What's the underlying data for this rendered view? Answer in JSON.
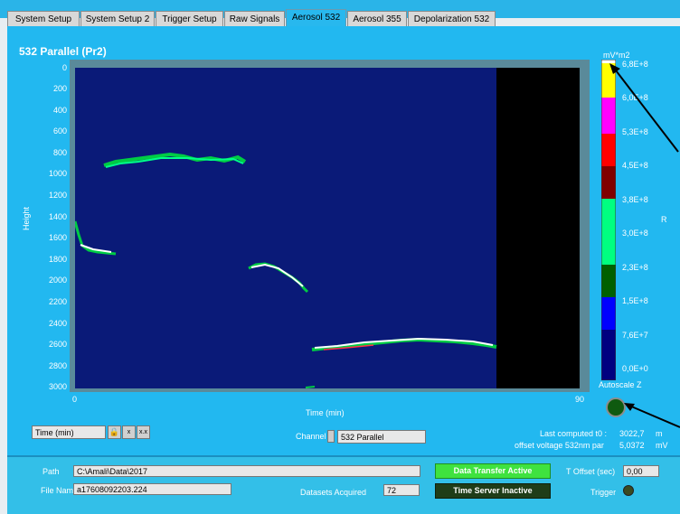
{
  "tabs": [
    {
      "label": "System Setup"
    },
    {
      "label": "System Setup 2"
    },
    {
      "label": "Trigger Setup"
    },
    {
      "label": "Raw Signals"
    },
    {
      "label": "Aerosol 532",
      "active": true
    },
    {
      "label": "Aerosol 355"
    },
    {
      "label": "Depolarization 532"
    }
  ],
  "plot": {
    "title": "532 Parallel (Pr2)",
    "ylabel": "Height",
    "xlabel": "Time (min)",
    "yticks": [
      "0",
      "200",
      "400",
      "600",
      "800",
      "1000",
      "1200",
      "1400",
      "1600",
      "1800",
      "2000",
      "2200",
      "2400",
      "2600",
      "2800",
      "3000"
    ],
    "xticks": [
      "0",
      "90"
    ]
  },
  "colorscale": {
    "unit": "mV*m2",
    "labels": [
      "6,8E+8",
      "6,0E+8",
      "5,3E+8",
      "4,5E+8",
      "3,8E+8",
      "3,0E+8",
      "2,3E+8",
      "1,5E+8",
      "7,6E+7",
      "0,0E+0"
    ],
    "side_label": "R",
    "colors": [
      "#ffffff",
      "#ffff00",
      "#ff00ff",
      "#ff0000",
      "#800000",
      "#00ff80",
      "#00c000",
      "#006000",
      "#0000ff",
      "#000080"
    ],
    "autoscale_label": "Autoscale Z"
  },
  "controls": {
    "xaxis_select": "Time (min)",
    "channel_label": "Channel",
    "channel_value": "532 Parallel",
    "last_t0_label": "Last computed t0 :",
    "last_t0_value": "3022,7",
    "last_t0_unit": "m",
    "offset_label": "offset voltage 532nm par",
    "offset_value": "5,0372",
    "offset_unit": "mV"
  },
  "bottom": {
    "path_label": "Path",
    "path_value": "C:\\Amali\\Data\\2017",
    "filename_label": "File Name",
    "filename_value": "a17608092203.224",
    "datasets_label": "Datasets Acquired",
    "datasets_value": "72",
    "data_transfer_label": "Data Transfer Active",
    "time_server_label": "Time Server Inactive",
    "toffset_label": "T Offset (sec)",
    "toffset_value": "0,00",
    "trigger_label": "Trigger"
  }
}
